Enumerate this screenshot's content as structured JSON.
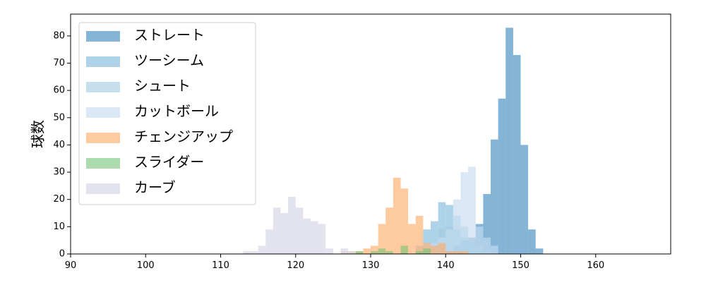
{
  "chart_data": {
    "type": "histogram",
    "ylabel": "球数",
    "xlabel": "",
    "xlim": [
      90,
      170
    ],
    "ylim": [
      0,
      88
    ],
    "x_ticks": [
      90,
      100,
      110,
      120,
      130,
      140,
      150,
      160
    ],
    "y_ticks": [
      0,
      10,
      20,
      30,
      40,
      50,
      60,
      70,
      80
    ],
    "legend_position": "top-left",
    "bin_width": 1,
    "grid": false,
    "series": [
      {
        "name": "ストレート",
        "color": "#1f77b4",
        "opacity": 0.55,
        "bins": [
          [
            140,
            1
          ],
          [
            141,
            3
          ],
          [
            142,
            5
          ],
          [
            143,
            6
          ],
          [
            144,
            11
          ],
          [
            145,
            22
          ],
          [
            146,
            42
          ],
          [
            147,
            57
          ],
          [
            148,
            83
          ],
          [
            149,
            73
          ],
          [
            150,
            40
          ],
          [
            151,
            9
          ],
          [
            152,
            2
          ]
        ]
      },
      {
        "name": "ツーシーム",
        "color": "#6baed6",
        "opacity": 0.55,
        "bins": [
          [
            136,
            3
          ],
          [
            137,
            9
          ],
          [
            138,
            12
          ],
          [
            139,
            19
          ],
          [
            140,
            18
          ],
          [
            141,
            9
          ],
          [
            142,
            6
          ],
          [
            143,
            4
          ],
          [
            144,
            1
          ]
        ]
      },
      {
        "name": "シュート",
        "color": "#9ecae1",
        "opacity": 0.6,
        "bins": [
          [
            137,
            2
          ],
          [
            138,
            4
          ],
          [
            139,
            9
          ],
          [
            140,
            10
          ],
          [
            141,
            14
          ],
          [
            142,
            10
          ],
          [
            143,
            6
          ],
          [
            144,
            3
          ],
          [
            145,
            1
          ]
        ]
      },
      {
        "name": "カットボール",
        "color": "#c6dbef",
        "opacity": 0.65,
        "bins": [
          [
            136,
            3
          ],
          [
            137,
            4
          ],
          [
            138,
            4
          ],
          [
            139,
            6
          ],
          [
            140,
            9
          ],
          [
            141,
            20
          ],
          [
            142,
            30
          ],
          [
            143,
            32
          ],
          [
            144,
            10
          ],
          [
            145,
            6
          ],
          [
            146,
            3
          ]
        ]
      },
      {
        "name": "チェンジアップ",
        "color": "#fdae6b",
        "opacity": 0.65,
        "bins": [
          [
            126,
            1
          ],
          [
            127,
            1
          ],
          [
            128,
            1
          ],
          [
            129,
            2
          ],
          [
            130,
            3
          ],
          [
            131,
            11
          ],
          [
            132,
            17
          ],
          [
            133,
            28
          ],
          [
            134,
            24
          ],
          [
            135,
            11
          ],
          [
            136,
            14
          ],
          [
            137,
            4
          ],
          [
            138,
            3
          ],
          [
            139,
            4
          ],
          [
            140,
            1
          ],
          [
            141,
            1
          ],
          [
            142,
            1
          ]
        ]
      },
      {
        "name": "スライダー",
        "color": "#74c476",
        "opacity": 0.6,
        "bins": [
          [
            128,
            1
          ],
          [
            130,
            1
          ],
          [
            131,
            2
          ],
          [
            132,
            1
          ],
          [
            134,
            3
          ],
          [
            136,
            1
          ],
          [
            137,
            2
          ]
        ]
      },
      {
        "name": "カーブ",
        "color": "#dadaeb",
        "opacity": 0.75,
        "bins": [
          [
            113,
            1
          ],
          [
            114,
            1
          ],
          [
            115,
            3
          ],
          [
            116,
            9
          ],
          [
            117,
            17
          ],
          [
            118,
            15
          ],
          [
            119,
            21
          ],
          [
            120,
            17
          ],
          [
            121,
            13
          ],
          [
            122,
            12
          ],
          [
            123,
            11
          ],
          [
            124,
            2
          ],
          [
            126,
            2
          ],
          [
            127,
            1
          ]
        ]
      }
    ]
  }
}
